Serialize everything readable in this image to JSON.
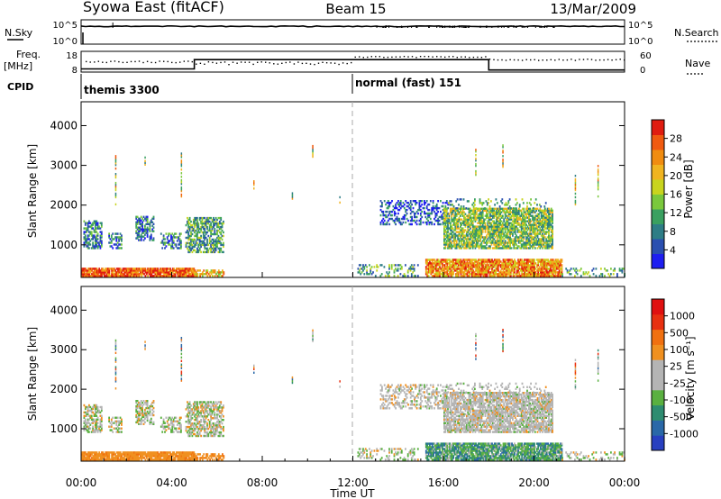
{
  "header": {
    "station": "Syowa East (fitACF)",
    "beam": "Beam 15",
    "date": "13/Mar/2009"
  },
  "top_panels": {
    "nsky_label": "N.Sky",
    "nsky_ticks": [
      "10^5",
      "10^0"
    ],
    "nsearch_label": "N.Search",
    "nsearch_ticks": [
      "10^5",
      "10^0"
    ],
    "freq_label": "Freq.",
    "freq_unit": "[MHz]",
    "freq_ticks": [
      "18",
      "8"
    ],
    "nave_label": "Nave",
    "nave_ticks": [
      "60",
      "0"
    ],
    "cpid_label": "CPID",
    "cpid_modes": [
      {
        "name": "themis 3300",
        "start_hour": 0,
        "end_hour": 11.9
      },
      {
        "name": "normal (fast) 151",
        "start_hour": 11.9,
        "end_hour": 24
      }
    ],
    "freq_steps": [
      {
        "start_hour": 0,
        "end_hour": 5,
        "value": 9.5
      },
      {
        "start_hour": 5,
        "end_hour": 18,
        "value": 14
      },
      {
        "start_hour": 18,
        "end_hour": 24,
        "value": 9
      }
    ]
  },
  "chart_data": [
    {
      "type": "heatmap",
      "name": "power",
      "xlabel": "",
      "ylabel": "Slant Range [km]",
      "xlim": [
        0,
        24
      ],
      "ylim": [
        180,
        4600
      ],
      "yticks": [
        1000,
        2000,
        3000,
        4000
      ],
      "colorbar": {
        "label": "Power [dB]",
        "ticks": [
          "4",
          "8",
          "12",
          "16",
          "20",
          "24",
          "28"
        ],
        "colors": [
          "#1e1ef0",
          "#2a4fb0",
          "#2e7d86",
          "#3aa060",
          "#7ac83c",
          "#c8d41e",
          "#f0b420",
          "#f08c10",
          "#f05a10",
          "#e01c10"
        ]
      }
    },
    {
      "type": "heatmap",
      "name": "velocity",
      "xlabel": "Time UT",
      "ylabel": "Slant Range [km]",
      "xlim": [
        0,
        24
      ],
      "ylim": [
        180,
        4600
      ],
      "yticks": [
        1000,
        2000,
        3000,
        4000
      ],
      "xticks": [
        "00:00",
        "04:00",
        "08:00",
        "12:00",
        "16:00",
        "20:00",
        "00:00"
      ],
      "colorbar": {
        "label": "Velocity [m s⁻¹]",
        "ticks": [
          "1000",
          "500",
          "100",
          "25",
          "-25",
          "-100",
          "-500",
          "-1000"
        ],
        "colors": [
          "#2840c0",
          "#2a68a8",
          "#2e8c70",
          "#5ab040",
          "#b4b4b4",
          "#b4b4b4",
          "#f09020",
          "#f07010",
          "#e83010",
          "#e01010"
        ]
      }
    }
  ]
}
